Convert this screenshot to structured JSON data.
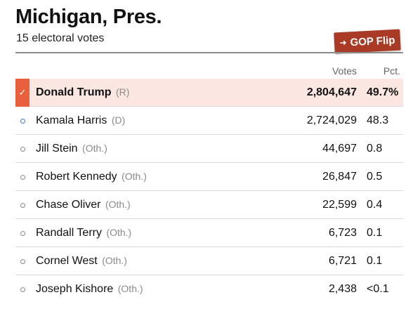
{
  "header": {
    "title": "Michigan, Pres.",
    "subtitle": "15 electoral votes",
    "badge_label": "GOP Flip"
  },
  "table": {
    "columns": {
      "votes": "Votes",
      "pct": "Pct."
    },
    "rows": [
      {
        "name": "Donald Trump",
        "party": "(R)",
        "votes": "2,804,647",
        "pct": "49.7%",
        "winner": true
      },
      {
        "name": "Kamala Harris",
        "party": "(D)",
        "votes": "2,724,029",
        "pct": "48.3"
      },
      {
        "name": "Jill Stein",
        "party": "(Oth.)",
        "votes": "44,697",
        "pct": "0.8"
      },
      {
        "name": "Robert Kennedy",
        "party": "(Oth.)",
        "votes": "26,847",
        "pct": "0.5"
      },
      {
        "name": "Chase Oliver",
        "party": "(Oth.)",
        "votes": "22,599",
        "pct": "0.4"
      },
      {
        "name": "Randall Terry",
        "party": "(Oth.)",
        "votes": "6,723",
        "pct": "0.1"
      },
      {
        "name": "Cornel West",
        "party": "(Oth.)",
        "votes": "6,721",
        "pct": "0.1"
      },
      {
        "name": "Joseph Kishore",
        "party": "(Oth.)",
        "votes": "2,438",
        "pct": "<0.1"
      }
    ]
  },
  "colors": {
    "winner_accent": "#e8603c",
    "winner_row_bg": "#fbe6e2",
    "badge_bg": "#a83a26",
    "dem_dot": "#3a7bd5"
  },
  "icons": {
    "winner_marker": "checkmark-icon",
    "candidate_marker": "circle-icon",
    "badge_icon": "arrow-right-icon"
  }
}
